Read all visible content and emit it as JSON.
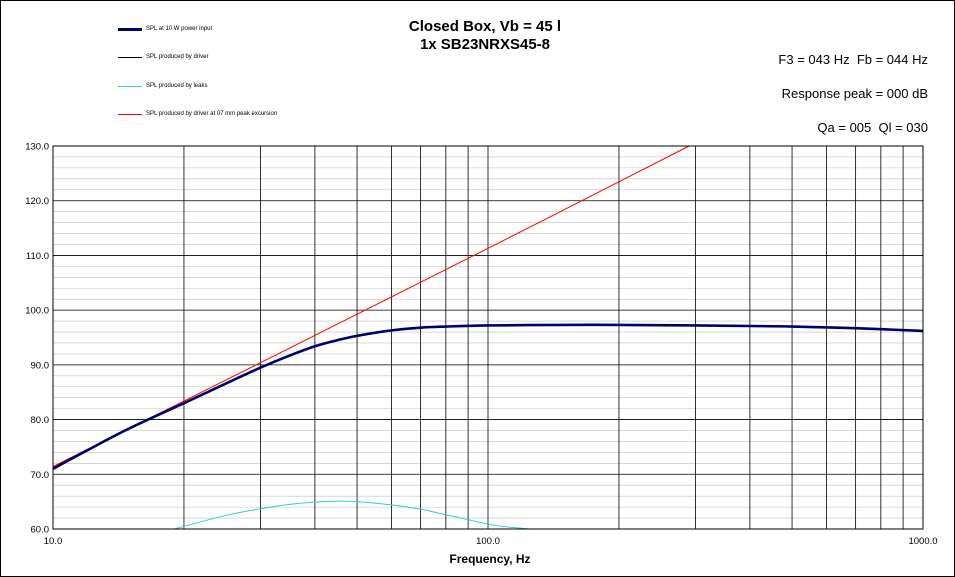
{
  "chart_data": {
    "type": "line",
    "title": "Closed Box, Vb = 45 l",
    "subtitle": "1x SB23NRXS45-8",
    "xlabel": "Frequency,  Hz",
    "ylabel": "",
    "xscale": "log",
    "xlim": [
      10,
      1000
    ],
    "ylim": [
      60,
      130
    ],
    "x_ticks": [
      "10.0",
      "100.0",
      "1000.0"
    ],
    "y_ticks": [
      "60.0",
      "70.0",
      "80.0",
      "90.0",
      "100.0",
      "110.0",
      "120.0",
      "130.0"
    ],
    "grid": true,
    "legend_position": "top-left",
    "annotations": {
      "f3_fb": "F3 = 043 Hz  Fb = 044 Hz",
      "response_peak": "Response peak = 000 dB",
      "qa_ql": "Qa = 005  Ql = 030"
    },
    "series": [
      {
        "name": "SPL at 10 W power input",
        "color": "#000066",
        "x": [
          10,
          12,
          15,
          20,
          25,
          30,
          35,
          40,
          45,
          50,
          60,
          70,
          80,
          100,
          150,
          200,
          300,
          400,
          500,
          700,
          1000
        ],
        "y": [
          71.0,
          74.4,
          78.4,
          83.0,
          86.6,
          89.5,
          91.7,
          93.4,
          94.5,
          95.3,
          96.3,
          96.8,
          97.0,
          97.2,
          97.3,
          97.3,
          97.2,
          97.1,
          97.0,
          96.7,
          96.2
        ]
      },
      {
        "name": "SPL produced by driver",
        "color": "#000000",
        "x": [
          10,
          12,
          15,
          20,
          25,
          30,
          35,
          40,
          45,
          50,
          60,
          70,
          80,
          100,
          150,
          200,
          300,
          400,
          500,
          700,
          1000
        ],
        "y": [
          71.0,
          74.4,
          78.4,
          83.0,
          86.6,
          89.5,
          91.7,
          93.4,
          94.5,
          95.3,
          96.3,
          96.8,
          97.0,
          97.2,
          97.3,
          97.3,
          97.2,
          97.1,
          97.0,
          96.7,
          96.2
        ]
      },
      {
        "name": "SPL produced by leaks",
        "color": "#33CCCC",
        "x": [
          19,
          25,
          30,
          35,
          40,
          45,
          50,
          60,
          70,
          80,
          90,
          100,
          110,
          125
        ],
        "y": [
          60.0,
          62.5,
          63.7,
          64.5,
          64.9,
          65.1,
          65.0,
          64.4,
          63.6,
          62.6,
          61.7,
          60.9,
          60.4,
          60.0
        ]
      },
      {
        "name": "SPL produced by driver at 07 mm peak excursion",
        "color": "#FF0000",
        "x": [
          10,
          30,
          100,
          290
        ],
        "y": [
          71.4,
          90.4,
          111.3,
          130.0
        ]
      }
    ]
  }
}
